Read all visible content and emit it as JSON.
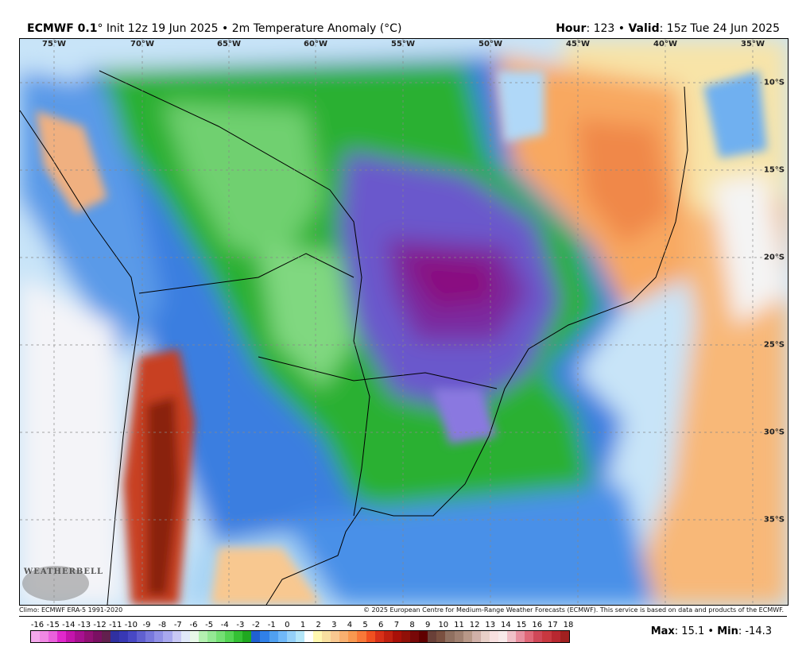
{
  "header": {
    "model": "ECMWF 0.1",
    "deg": "°",
    "init": " Init 12z 19 Jun 2025 • 2m Temperature Anomaly (°C)",
    "hour_label": "Hour",
    "hour_value": ": 123 • ",
    "valid_label": "Valid",
    "valid_value": ": 15z Tue 24 Jun 2025"
  },
  "map": {
    "lon_labels": [
      "75°W",
      "70°W",
      "65°W",
      "60°W",
      "55°W",
      "50°W",
      "45°W",
      "40°W",
      "35°W"
    ],
    "lat_labels": [
      "10°S",
      "15°S",
      "20°S",
      "25°S",
      "30°S",
      "35°S"
    ],
    "logo_text": "WEATHERBELL"
  },
  "footer": {
    "climo": "Climo: ECMWF ERA-5 1991-2020",
    "copyright": "© 2025 European Centre for Medium-Range Weather Forecasts (ECMWF). This service is based on data and products of the ECMWF."
  },
  "colorbar": {
    "labels": [
      "-16",
      "-15",
      "-14",
      "-13",
      "-12",
      "-11",
      "-10",
      "-9",
      "-8",
      "-7",
      "-6",
      "-5",
      "-4",
      "-3",
      "-2",
      "-1",
      "0",
      "1",
      "2",
      "3",
      "4",
      "5",
      "6",
      "7",
      "8",
      "9",
      "10",
      "11",
      "12",
      "13",
      "14",
      "15",
      "16",
      "17",
      "18"
    ],
    "colors": [
      "#f4a8ec",
      "#f088e4",
      "#ea60dc",
      "#e028cc",
      "#c414ac",
      "#a81090",
      "#921074",
      "#7a1062",
      "#62204e",
      "#3030a0",
      "#3838b4",
      "#4848c4",
      "#6060d0",
      "#7878dc",
      "#9090e6",
      "#a8a8ee",
      "#c8c8f4",
      "#e0e8f8",
      "#e8f8e8",
      "#b4f0b0",
      "#94e894",
      "#74e074",
      "#54d454",
      "#34c034",
      "#20a820",
      "#2060d0",
      "#3080e8",
      "#50a0f0",
      "#70b8f8",
      "#94d0f8",
      "#b4e6f8",
      "#ffffff",
      "#fff8b0",
      "#f8e0a0",
      "#f8c890",
      "#f8b070",
      "#f89850",
      "#f87838",
      "#f05020",
      "#d83018",
      "#c02010",
      "#a81008",
      "#901008",
      "#780808",
      "#600000",
      "#6a4038",
      "#7a5040",
      "#907060",
      "#a08070",
      "#b89888",
      "#d0b0a8",
      "#e8d0c8",
      "#f8e0e0",
      "#f8eaea",
      "#f0c0c8",
      "#e890a0",
      "#e06878",
      "#d04858",
      "#c83840",
      "#b82830",
      "#a02020"
    ]
  },
  "stats": {
    "max_label": "Max",
    "max_value": ": 15.1 • ",
    "min_label": "Min",
    "min_value": ": -14.3"
  },
  "colors": {
    "ocean_warm": "#f8b070",
    "anomaly_cold_core": "#8a1080",
    "andes_warm": "#b03010"
  }
}
